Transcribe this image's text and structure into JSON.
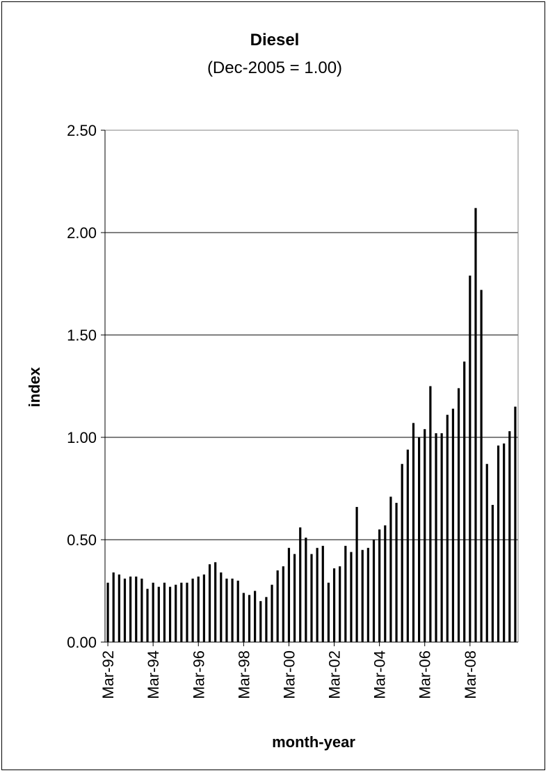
{
  "chart_data": {
    "type": "bar",
    "title": "Diesel",
    "subtitle": "(Dec-2005 = 1.00)",
    "xlabel": "month-year",
    "ylabel": "index",
    "ylim": [
      0,
      2.5
    ],
    "yticks": [
      "0.00",
      "0.50",
      "1.00",
      "1.50",
      "2.00",
      "2.50"
    ],
    "xtick_labels": [
      "Mar-92",
      "Mar-94",
      "Mar-96",
      "Mar-98",
      "Mar-00",
      "Mar-02",
      "Mar-04",
      "Mar-06",
      "Mar-08"
    ],
    "grid": "horizontal",
    "bar_color": "#000000",
    "series": [
      {
        "values": [
          0.29,
          0.34,
          0.33,
          0.31,
          0.32,
          0.32,
          0.31,
          0.26,
          0.29,
          0.27,
          0.29,
          0.27,
          0.28,
          0.29,
          0.29,
          0.31,
          0.32,
          0.33,
          0.38,
          0.39,
          0.34,
          0.31,
          0.31,
          0.3,
          0.24,
          0.23,
          0.25,
          0.2,
          0.22,
          0.28,
          0.35,
          0.37,
          0.46,
          0.43,
          0.56,
          0.51,
          0.43,
          0.46,
          0.47,
          0.29,
          0.36,
          0.37,
          0.47,
          0.44,
          0.66,
          0.45,
          0.46,
          0.5,
          0.55,
          0.57,
          0.71,
          0.68,
          0.87,
          0.94,
          1.07,
          1.0,
          1.04,
          1.25,
          1.02,
          1.02,
          1.11,
          1.14,
          1.24,
          1.37,
          1.79,
          2.12,
          1.72,
          0.87,
          0.67,
          0.96,
          0.97,
          1.03,
          1.15
        ]
      }
    ]
  }
}
